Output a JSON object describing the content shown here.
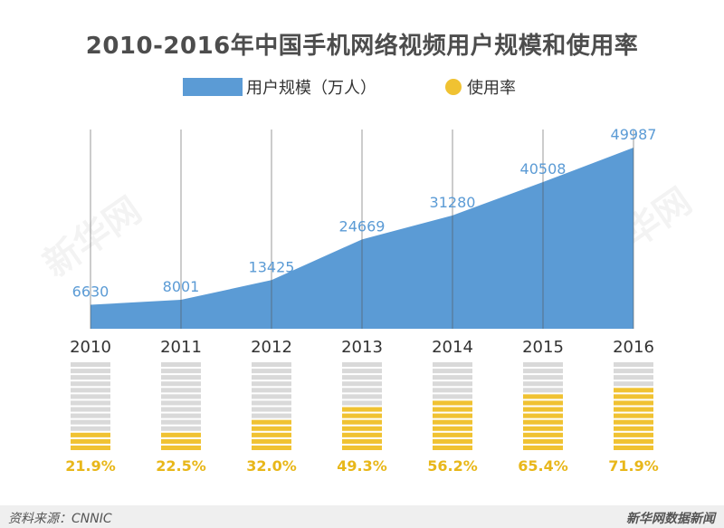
{
  "title": "2010-2016年中国手机网络视频用户规模和使用率",
  "legend": {
    "area_label": "用户规模（万人）",
    "rate_label": "使用率"
  },
  "watermarks": [
    "新华网",
    "新华网"
  ],
  "footer": {
    "source": "资料来源：CNNIC",
    "brand": "新华网数据新闻"
  },
  "colors": {
    "area": "#5b9bd5",
    "area_label": "#5b9bd5",
    "rate_fill": "#f0c232",
    "rate_empty": "#d9d9d9",
    "rate_text": "#e8b71a"
  },
  "chart_data": [
    {
      "type": "area",
      "title": "2010-2016年中国手机网络视频用户规模和使用率",
      "series_name": "用户规模（万人）",
      "categories": [
        "2010",
        "2011",
        "2012",
        "2013",
        "2014",
        "2015",
        "2016"
      ],
      "values": [
        6630,
        8001,
        13425,
        24669,
        31280,
        40508,
        49987
      ],
      "ylim": [
        0,
        55000
      ],
      "grid": "vertical"
    },
    {
      "type": "bar",
      "series_name": "使用率",
      "categories": [
        "2010",
        "2011",
        "2012",
        "2013",
        "2014",
        "2015",
        "2016"
      ],
      "values": [
        21.9,
        22.5,
        32.0,
        49.3,
        56.2,
        65.4,
        71.9
      ],
      "value_labels": [
        "21.9%",
        "22.5%",
        "32.0%",
        "49.3%",
        "56.2%",
        "65.4%",
        "71.9%"
      ],
      "ylim": [
        0,
        100
      ]
    }
  ]
}
